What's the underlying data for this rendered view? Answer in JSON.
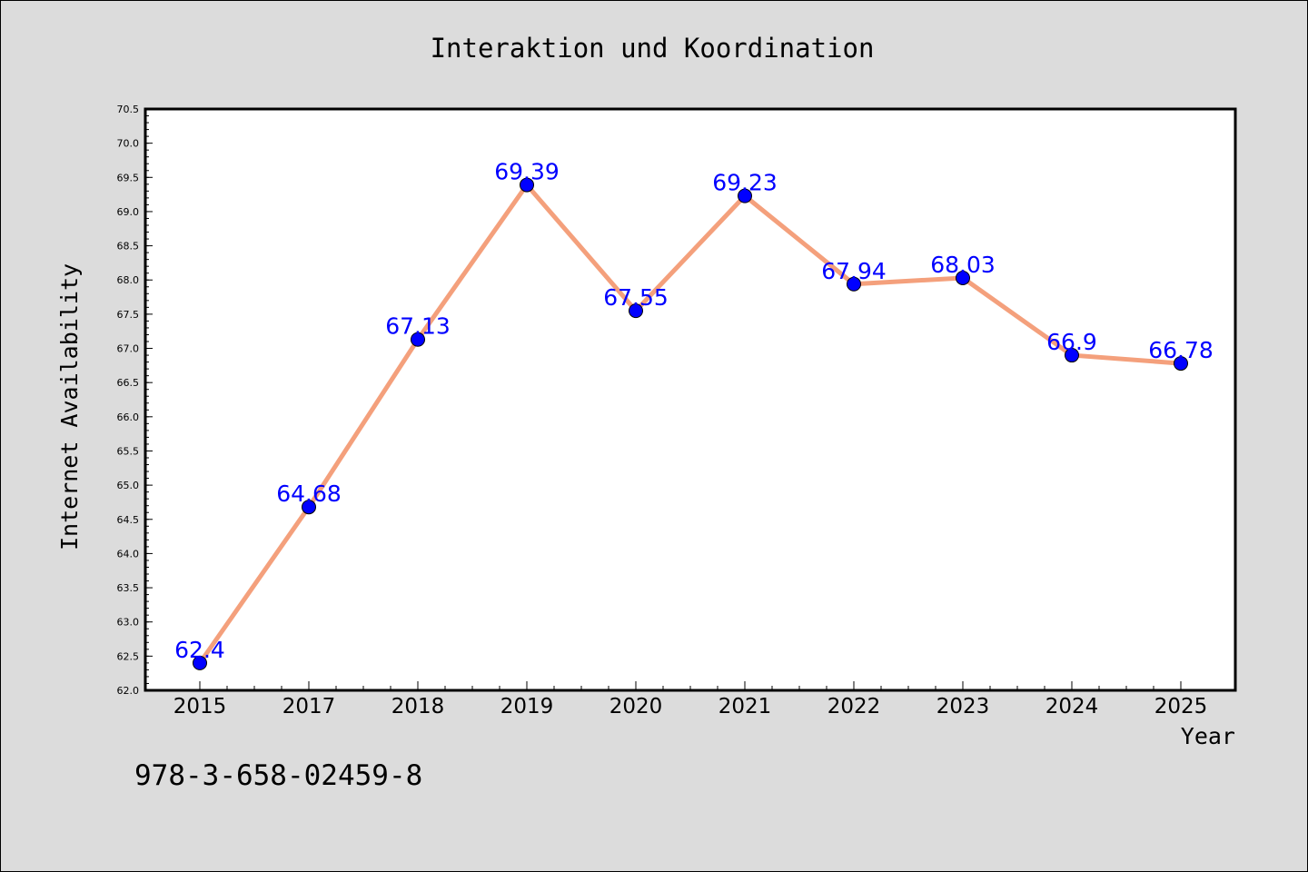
{
  "chart_data": {
    "type": "line",
    "title": "Interaktion und Koordination",
    "xlabel": "Year",
    "ylabel": "Internet Availability",
    "categories": [
      "2015",
      "2017",
      "2018",
      "2019",
      "2020",
      "2021",
      "2022",
      "2023",
      "2024",
      "2025"
    ],
    "series": [
      {
        "values": [
          62.4,
          64.68,
          67.13,
          69.39,
          67.55,
          69.23,
          67.94,
          68.03,
          66.9,
          66.78
        ],
        "data_labels": [
          "62.4",
          "64.68",
          "67.13",
          "69.39",
          "67.55",
          "69.23",
          "67.94",
          "68.03",
          "66.9",
          "66.78"
        ],
        "line_color": "#f4a07c",
        "marker_color": "#0000ff"
      }
    ],
    "ylim": [
      62.0,
      70.5
    ],
    "yticks": [
      "62.0",
      "62.5",
      "63.0",
      "63.5",
      "64.0",
      "64.5",
      "65.0",
      "65.5",
      "66.0",
      "66.5",
      "67.0",
      "67.5",
      "68.0",
      "68.5",
      "69.0",
      "69.5",
      "70.0",
      "70.5"
    ],
    "grid": false,
    "legend": "none"
  },
  "footer_text": "978-3-658-02459-8",
  "colors": {
    "background": "#dcdcdc",
    "plot_background": "#ffffff",
    "data_label": "#0000ff"
  }
}
